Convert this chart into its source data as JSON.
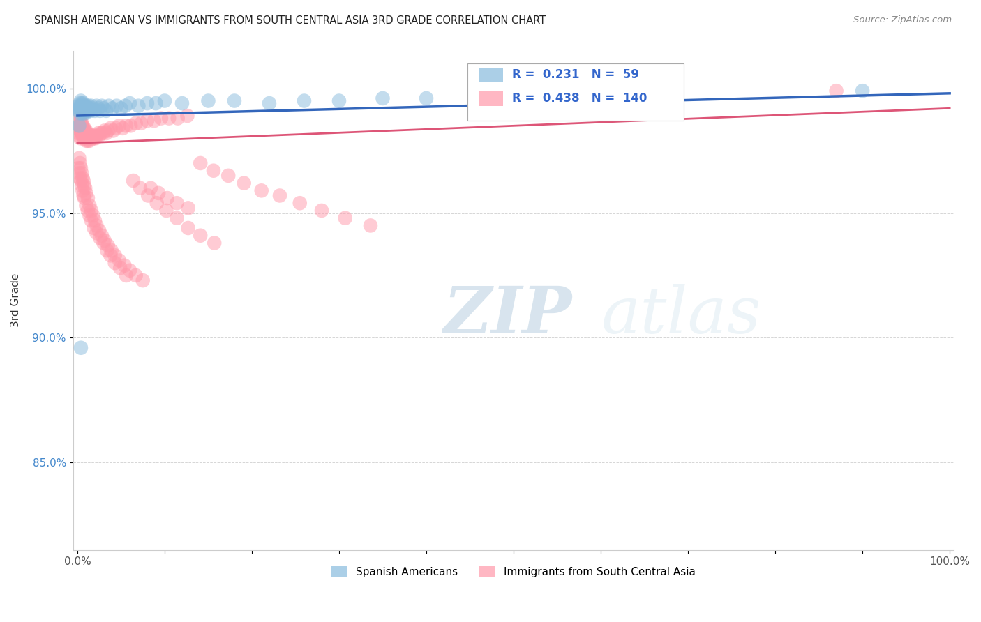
{
  "title": "SPANISH AMERICAN VS IMMIGRANTS FROM SOUTH CENTRAL ASIA 3RD GRADE CORRELATION CHART",
  "source": "Source: ZipAtlas.com",
  "ylabel": "3rd Grade",
  "blue_label": "Spanish Americans",
  "pink_label": "Immigrants from South Central Asia",
  "blue_R": 0.231,
  "blue_N": 59,
  "pink_R": 0.438,
  "pink_N": 140,
  "blue_color": "#88BBDD",
  "pink_color": "#FF99AA",
  "blue_line_color": "#3366BB",
  "pink_line_color": "#DD5577",
  "watermark_zip": "ZIP",
  "watermark_atlas": "atlas",
  "xlim": [
    0.0,
    1.0
  ],
  "ylim": [
    0.815,
    1.015
  ],
  "ytick_positions": [
    0.85,
    0.9,
    0.95,
    1.0
  ],
  "ytick_labels": [
    "85.0%",
    "90.0%",
    "95.0%",
    "100.0%"
  ],
  "blue_x": [
    0.001,
    0.002,
    0.002,
    0.003,
    0.003,
    0.003,
    0.004,
    0.004,
    0.004,
    0.005,
    0.005,
    0.005,
    0.006,
    0.006,
    0.007,
    0.007,
    0.007,
    0.008,
    0.008,
    0.009,
    0.009,
    0.01,
    0.01,
    0.011,
    0.012,
    0.013,
    0.014,
    0.015,
    0.016,
    0.018,
    0.02,
    0.022,
    0.024,
    0.026,
    0.028,
    0.03,
    0.033,
    0.036,
    0.04,
    0.045,
    0.05,
    0.055,
    0.06,
    0.07,
    0.08,
    0.09,
    0.1,
    0.12,
    0.15,
    0.18,
    0.22,
    0.26,
    0.3,
    0.35,
    0.4,
    0.5,
    0.002,
    0.004,
    0.9
  ],
  "blue_y": [
    0.992,
    0.991,
    0.993,
    0.99,
    0.992,
    0.994,
    0.991,
    0.993,
    0.995,
    0.99,
    0.992,
    0.994,
    0.991,
    0.993,
    0.99,
    0.992,
    0.994,
    0.991,
    0.993,
    0.99,
    0.992,
    0.991,
    0.993,
    0.992,
    0.991,
    0.993,
    0.992,
    0.991,
    0.993,
    0.992,
    0.991,
    0.993,
    0.992,
    0.991,
    0.993,
    0.992,
    0.991,
    0.993,
    0.992,
    0.993,
    0.992,
    0.993,
    0.994,
    0.993,
    0.994,
    0.994,
    0.995,
    0.994,
    0.995,
    0.995,
    0.994,
    0.995,
    0.995,
    0.996,
    0.996,
    0.997,
    0.985,
    0.896,
    0.999
  ],
  "pink_x": [
    0.001,
    0.001,
    0.001,
    0.002,
    0.002,
    0.002,
    0.002,
    0.003,
    0.003,
    0.003,
    0.003,
    0.004,
    0.004,
    0.004,
    0.005,
    0.005,
    0.005,
    0.006,
    0.006,
    0.006,
    0.007,
    0.007,
    0.007,
    0.008,
    0.008,
    0.008,
    0.009,
    0.009,
    0.01,
    0.01,
    0.01,
    0.011,
    0.011,
    0.012,
    0.012,
    0.013,
    0.014,
    0.014,
    0.015,
    0.016,
    0.017,
    0.018,
    0.019,
    0.02,
    0.021,
    0.022,
    0.024,
    0.025,
    0.027,
    0.029,
    0.031,
    0.033,
    0.035,
    0.038,
    0.041,
    0.044,
    0.048,
    0.052,
    0.056,
    0.061,
    0.067,
    0.073,
    0.08,
    0.088,
    0.096,
    0.105,
    0.115,
    0.126,
    0.002,
    0.003,
    0.004,
    0.005,
    0.006,
    0.007,
    0.008,
    0.009,
    0.01,
    0.012,
    0.014,
    0.016,
    0.018,
    0.02,
    0.022,
    0.025,
    0.028,
    0.031,
    0.035,
    0.039,
    0.043,
    0.048,
    0.054,
    0.06,
    0.067,
    0.075,
    0.084,
    0.093,
    0.103,
    0.114,
    0.127,
    0.141,
    0.156,
    0.173,
    0.191,
    0.211,
    0.232,
    0.255,
    0.28,
    0.307,
    0.336,
    0.001,
    0.002,
    0.003,
    0.004,
    0.005,
    0.006,
    0.007,
    0.008,
    0.01,
    0.012,
    0.014,
    0.016,
    0.019,
    0.022,
    0.026,
    0.03,
    0.034,
    0.038,
    0.043,
    0.049,
    0.056,
    0.064,
    0.072,
    0.081,
    0.091,
    0.102,
    0.114,
    0.127,
    0.141,
    0.157,
    0.87
  ],
  "pink_y": [
    0.988,
    0.985,
    0.982,
    0.988,
    0.986,
    0.984,
    0.981,
    0.987,
    0.985,
    0.983,
    0.98,
    0.987,
    0.985,
    0.983,
    0.986,
    0.984,
    0.982,
    0.985,
    0.983,
    0.981,
    0.984,
    0.982,
    0.98,
    0.984,
    0.982,
    0.98,
    0.983,
    0.981,
    0.983,
    0.981,
    0.979,
    0.982,
    0.98,
    0.981,
    0.979,
    0.98,
    0.981,
    0.979,
    0.98,
    0.981,
    0.98,
    0.981,
    0.98,
    0.981,
    0.98,
    0.981,
    0.982,
    0.981,
    0.982,
    0.982,
    0.983,
    0.982,
    0.983,
    0.984,
    0.983,
    0.984,
    0.985,
    0.984,
    0.985,
    0.985,
    0.986,
    0.986,
    0.987,
    0.987,
    0.988,
    0.988,
    0.988,
    0.989,
    0.972,
    0.97,
    0.968,
    0.966,
    0.964,
    0.963,
    0.961,
    0.96,
    0.958,
    0.956,
    0.953,
    0.951,
    0.949,
    0.947,
    0.945,
    0.943,
    0.941,
    0.939,
    0.937,
    0.935,
    0.933,
    0.931,
    0.929,
    0.927,
    0.925,
    0.923,
    0.96,
    0.958,
    0.956,
    0.954,
    0.952,
    0.97,
    0.967,
    0.965,
    0.962,
    0.959,
    0.957,
    0.954,
    0.951,
    0.948,
    0.945,
    0.968,
    0.966,
    0.964,
    0.963,
    0.961,
    0.959,
    0.957,
    0.956,
    0.953,
    0.951,
    0.949,
    0.947,
    0.944,
    0.942,
    0.94,
    0.938,
    0.935,
    0.933,
    0.93,
    0.928,
    0.925,
    0.963,
    0.96,
    0.957,
    0.954,
    0.951,
    0.948,
    0.944,
    0.941,
    0.938,
    0.999
  ]
}
